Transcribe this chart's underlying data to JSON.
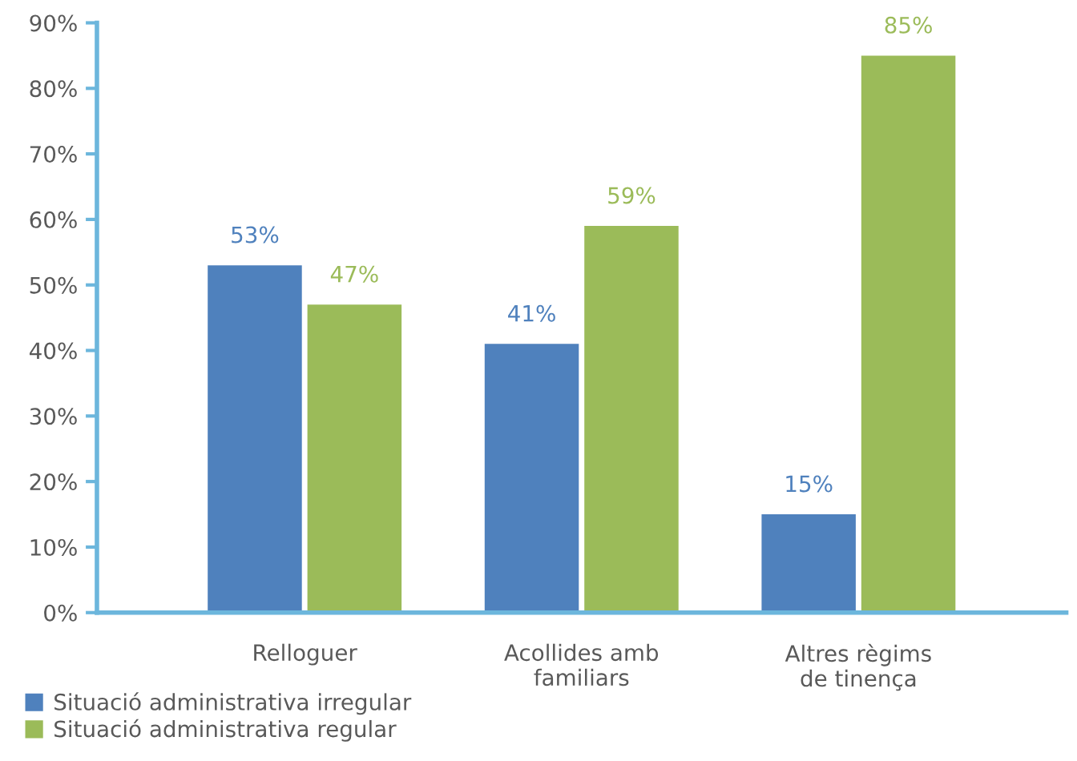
{
  "chart_data": {
    "type": "bar",
    "categories": [
      "Relloguer",
      "Acollides amb\nfamiliars",
      "Altres règims\nde tinença"
    ],
    "series": [
      {
        "name": "Situació administrativa irregular",
        "color": "#4f81bd",
        "values": [
          53,
          41,
          15
        ],
        "value_labels": [
          "53%",
          "41%",
          "15%"
        ]
      },
      {
        "name": "Situació administrativa regular",
        "color": "#9bbb59",
        "values": [
          47,
          59,
          85
        ],
        "value_labels": [
          "47%",
          "59%",
          "85%"
        ]
      }
    ],
    "ylim": [
      0,
      90
    ],
    "yticks": [
      {
        "value": 0,
        "label": "0%"
      },
      {
        "value": 10,
        "label": "10%"
      },
      {
        "value": 20,
        "label": "20%"
      },
      {
        "value": 30,
        "label": "30%"
      },
      {
        "value": 40,
        "label": "40%"
      },
      {
        "value": 50,
        "label": "50%"
      },
      {
        "value": 60,
        "label": "60%"
      },
      {
        "value": 70,
        "label": "70%"
      },
      {
        "value": 80,
        "label": "80%"
      },
      {
        "value": 90,
        "label": "90%"
      }
    ],
    "grid": false,
    "legend": "bottom left"
  }
}
